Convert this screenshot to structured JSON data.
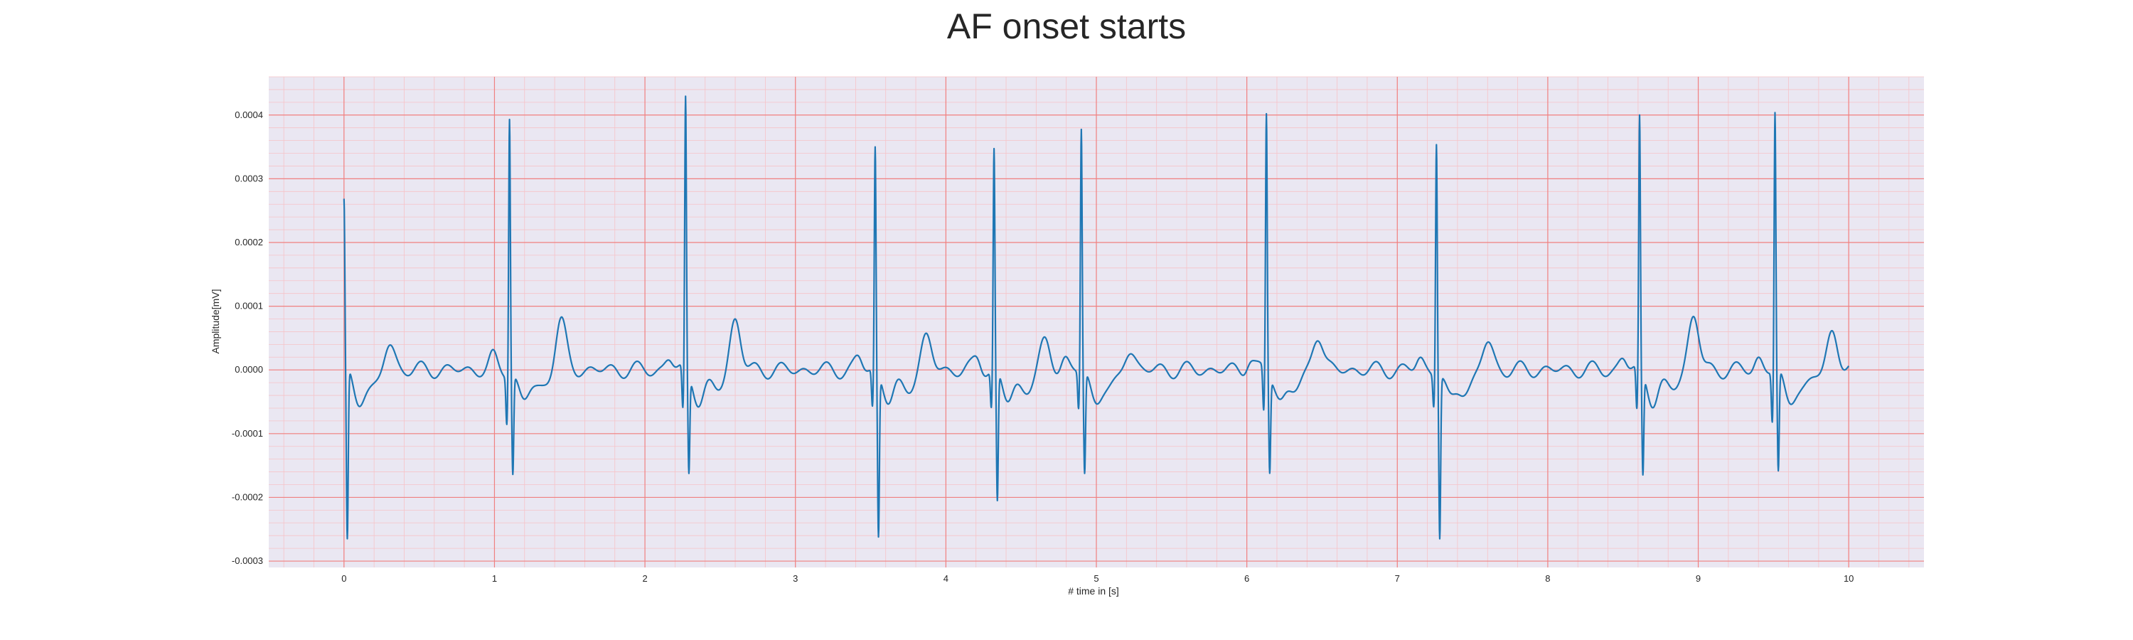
{
  "chart_data": {
    "type": "line",
    "title": "AF onset starts",
    "xlabel": "# time in [s]",
    "ylabel": "Amplitude[mV]",
    "xlim": [
      -0.5,
      10.5
    ],
    "ylim": [
      -0.00031,
      0.00046
    ],
    "x_ticks": [
      0,
      1,
      2,
      3,
      4,
      5,
      6,
      7,
      8,
      9,
      10
    ],
    "x_tick_labels": [
      "0",
      "1",
      "2",
      "3",
      "4",
      "5",
      "6",
      "7",
      "8",
      "9",
      "10"
    ],
    "y_ticks": [
      -0.0003,
      -0.0002,
      -0.0001,
      0.0,
      0.0001,
      0.0002,
      0.0003,
      0.0004
    ],
    "y_tick_labels": [
      "-0.0003",
      "-0.0002",
      "-0.0001",
      "0.0000",
      "0.0001",
      "0.0002",
      "0.0003",
      "0.0004"
    ],
    "grid": true,
    "colors": {
      "line": "#1f77b4",
      "background": "#eae7f2",
      "major_grid": "#f08080",
      "minor_grid": "#f6c3c8"
    },
    "beats": [
      {
        "t": 0.0,
        "r": 0.000265,
        "q": -1e-05,
        "s": -0.00027
      },
      {
        "t": 1.1,
        "r": 0.000405,
        "q": -7.5e-05,
        "s": -0.000155
      },
      {
        "t": 2.27,
        "r": 0.000425,
        "q": -7e-05,
        "s": -0.000155
      },
      {
        "t": 3.53,
        "r": 0.00035,
        "q": -6e-05,
        "s": -0.000255
      },
      {
        "t": 4.32,
        "r": 0.000345,
        "q": -6e-05,
        "s": -0.000205
      },
      {
        "t": 4.9,
        "r": 0.00038,
        "q": -6e-05,
        "s": -0.00016
      },
      {
        "t": 6.13,
        "r": 0.000405,
        "q": -7e-05,
        "s": -0.00015
      },
      {
        "t": 7.26,
        "r": 0.000365,
        "q": -5e-05,
        "s": -0.000255
      },
      {
        "t": 8.61,
        "r": 0.000395,
        "q": -7e-05,
        "s": -0.00016
      },
      {
        "t": 9.51,
        "r": 0.000405,
        "q": -8e-05,
        "s": -0.00016
      }
    ],
    "t_waves": [
      {
        "t": 0.3,
        "a": 4.5e-05
      },
      {
        "t": 1.44,
        "a": 7.5e-05
      },
      {
        "t": 2.6,
        "a": 8e-05
      },
      {
        "t": 3.87,
        "a": 5e-05
      },
      {
        "t": 4.66,
        "a": 4e-05
      },
      {
        "t": 5.22,
        "a": 3.5e-05
      },
      {
        "t": 6.47,
        "a": 6e-05
      },
      {
        "t": 7.6,
        "a": 4.5e-05
      },
      {
        "t": 8.97,
        "a": 8.5e-05
      },
      {
        "t": 9.89,
        "a": 6e-05
      }
    ],
    "end_t": 10.0
  }
}
